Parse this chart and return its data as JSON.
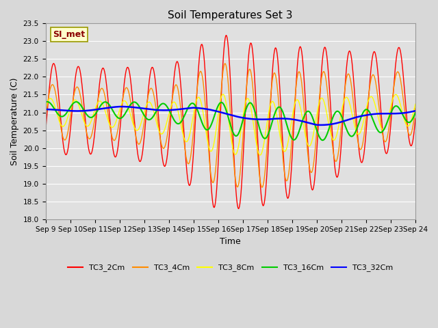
{
  "title": "Soil Temperatures Set 3",
  "xlabel": "Time",
  "ylabel": "Soil Temperature (C)",
  "ylim": [
    18.0,
    23.5
  ],
  "yticks": [
    18.0,
    18.5,
    19.0,
    19.5,
    20.0,
    20.5,
    21.0,
    21.5,
    22.0,
    22.5,
    23.0,
    23.5
  ],
  "x_labels": [
    "Sep 9",
    "Sep 10",
    "Sep 11",
    "Sep 12",
    "Sep 13",
    "Sep 14",
    "Sep 15",
    "Sep 16",
    "Sep 17",
    "Sep 18",
    "Sep 19",
    "Sep 20",
    "Sep 21",
    "Sep 22",
    "Sep 23",
    "Sep 24"
  ],
  "annotation": "SI_met",
  "series_colors": {
    "TC3_2Cm": "#ff0000",
    "TC3_4Cm": "#ff8c00",
    "TC3_8Cm": "#ffff00",
    "TC3_16Cm": "#00cc00",
    "TC3_32Cm": "#0000ff"
  },
  "fig_bg_color": "#d8d8d8",
  "plot_bg_color": "#e0e0e0",
  "grid_color": "#ffffff",
  "title_fontsize": 11,
  "axis_label_fontsize": 9,
  "tick_fontsize": 7.5,
  "legend_fontsize": 8
}
